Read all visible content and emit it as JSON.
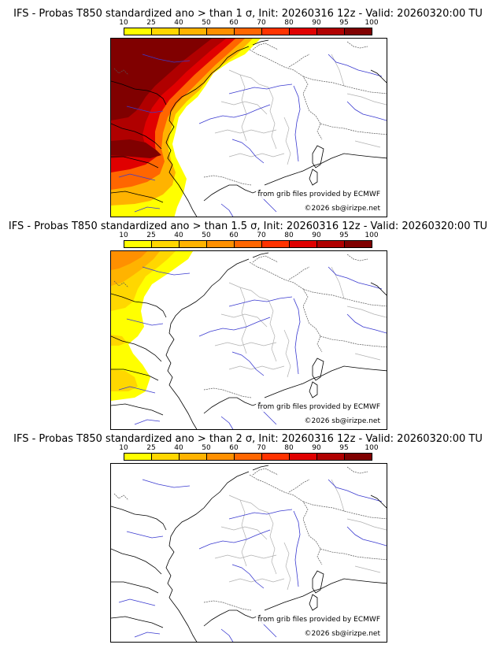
{
  "colorbar": {
    "labels": [
      "10",
      "25",
      "40",
      "50",
      "60",
      "70",
      "80",
      "90",
      "95",
      "100"
    ],
    "colors": [
      "#ffff00",
      "#ffd700",
      "#ffb300",
      "#ff9000",
      "#ff6600",
      "#ff3300",
      "#e00000",
      "#b00000",
      "#800000"
    ]
  },
  "panels": [
    {
      "title": "IFS - Probas T850  standardized ano > than 1 σ, Init: 20260316 12z - Valid: 20260320:00 TU",
      "source": "from grib files provided by ECMWF",
      "copyright": "©2026 sb@irizpe.net",
      "intensity": "high"
    },
    {
      "title": "IFS - Probas T850  standardized ano > than 1.5 σ, Init: 20260316 12z - Valid: 20260320:00 TU",
      "source": "from grib files provided by ECMWF",
      "copyright": "©2026 sb@irizpe.net",
      "intensity": "medium"
    },
    {
      "title": "IFS - Probas T850  standardized ano > than 2 σ, Init: 20260316 12z - Valid: 20260320:00 TU",
      "source": "from grib files provided by ECMWF",
      "copyright": "©2026 sb@irizpe.net",
      "intensity": "none"
    }
  ]
}
